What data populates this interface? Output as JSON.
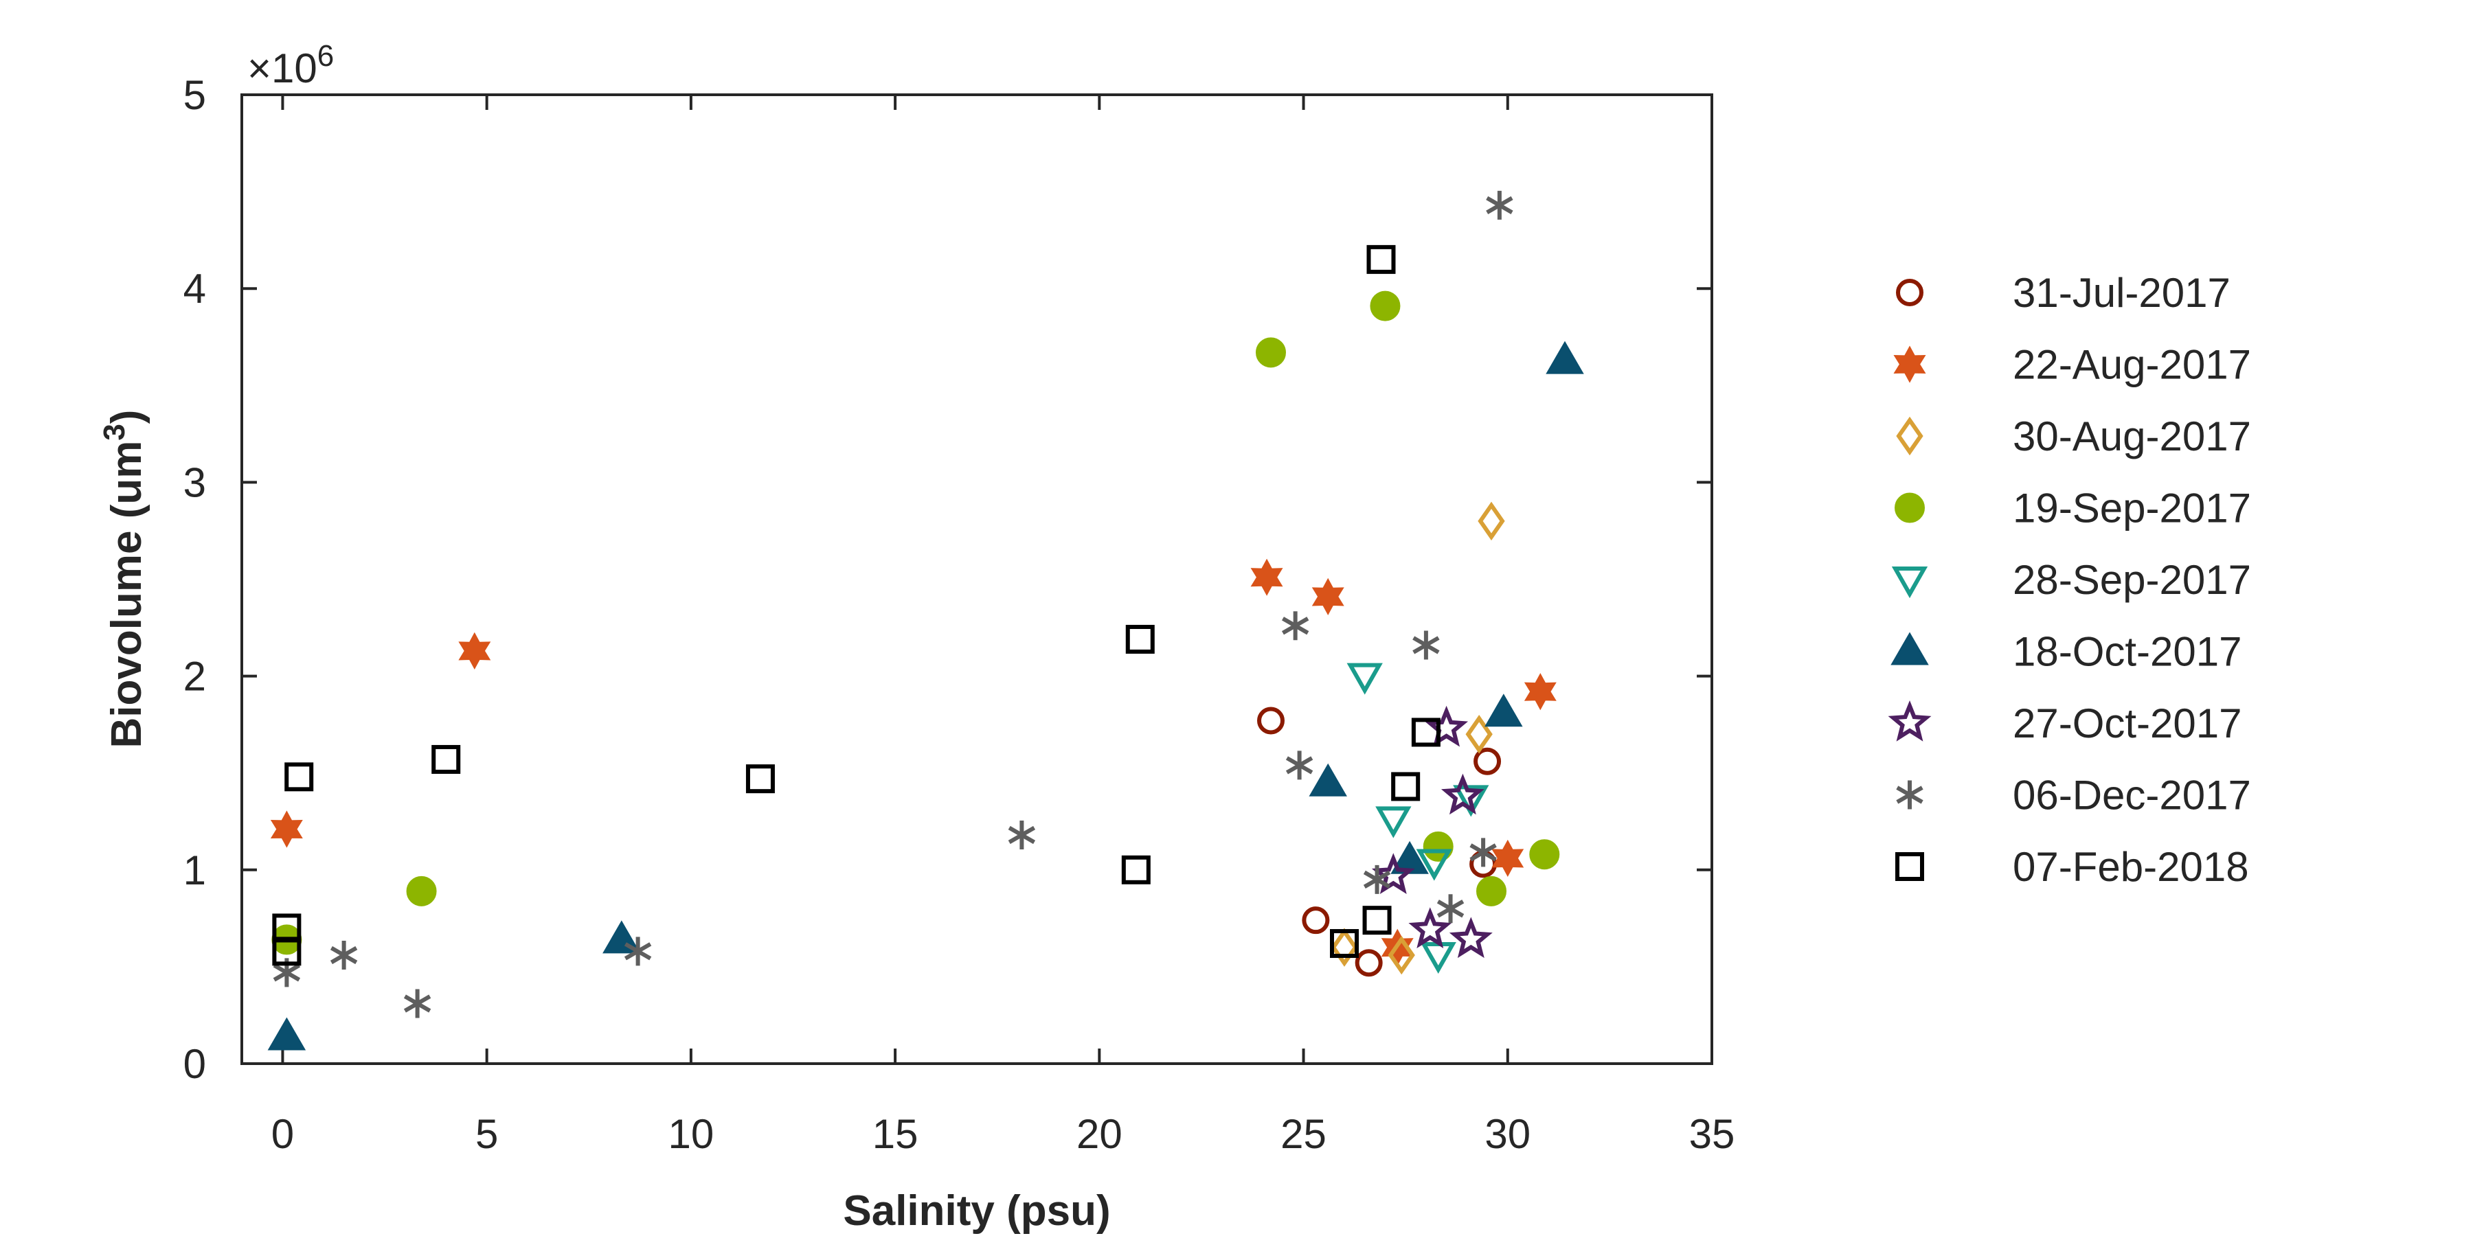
{
  "chart_data": {
    "type": "scatter",
    "xlabel": "Salinity (psu)",
    "ylabel_main": "Biovolume (um",
    "ylabel_sup": "3",
    "ylabel_close": ")",
    "xlim": [
      -1,
      35
    ],
    "ylim": [
      0,
      5000000
    ],
    "x_ticks": [
      0,
      5,
      10,
      15,
      20,
      25,
      30,
      35
    ],
    "y_ticks": [
      0,
      1,
      2,
      3,
      4,
      5
    ],
    "y_multiplier_prefix": "×10",
    "y_multiplier_exponent": "6",
    "legend_position": "right",
    "series": [
      {
        "name": "31-Jul-2017",
        "marker": "circle-open",
        "color": "#8B1A00",
        "points": [
          [
            24.2,
            1770000
          ],
          [
            25.3,
            740000
          ],
          [
            26.6,
            520000
          ],
          [
            29.4,
            1030000
          ],
          [
            29.5,
            1560000
          ]
        ]
      },
      {
        "name": "22-Aug-2017",
        "marker": "hexagram-filled",
        "color": "#D95319",
        "points": [
          [
            0.1,
            1210000
          ],
          [
            4.7,
            2130000
          ],
          [
            24.1,
            2510000
          ],
          [
            25.6,
            2410000
          ],
          [
            27.3,
            600000
          ],
          [
            30.0,
            1060000
          ],
          [
            30.8,
            1920000
          ]
        ]
      },
      {
        "name": "30-Aug-2017",
        "marker": "diamond-open",
        "color": "#D9A036",
        "points": [
          [
            26.0,
            600000
          ],
          [
            27.4,
            560000
          ],
          [
            29.3,
            1700000
          ],
          [
            29.6,
            2800000
          ]
        ]
      },
      {
        "name": "19-Sep-2017",
        "marker": "circle-filled",
        "color": "#8DB500",
        "points": [
          [
            0.1,
            640000
          ],
          [
            3.4,
            890000
          ],
          [
            24.2,
            3670000
          ],
          [
            27.0,
            3910000
          ],
          [
            28.3,
            1120000
          ],
          [
            29.6,
            890000
          ],
          [
            30.9,
            1080000
          ]
        ]
      },
      {
        "name": "28-Sep-2017",
        "marker": "triangle-down-open",
        "color": "#1A9C8C",
        "points": [
          [
            26.5,
            2000000
          ],
          [
            27.2,
            1260000
          ],
          [
            28.2,
            1040000
          ],
          [
            28.3,
            560000
          ],
          [
            29.1,
            1370000
          ]
        ]
      },
      {
        "name": "18-Oct-2017",
        "marker": "triangle-up-filled",
        "color": "#0A4F6E",
        "points": [
          [
            0.1,
            140000
          ],
          [
            8.3,
            640000
          ],
          [
            25.6,
            1450000
          ],
          [
            27.6,
            1050000
          ],
          [
            29.9,
            1810000
          ],
          [
            31.4,
            3630000
          ]
        ]
      },
      {
        "name": "27-Oct-2017",
        "marker": "pentagram-open",
        "color": "#4D1F60",
        "points": [
          [
            27.2,
            970000
          ],
          [
            28.1,
            690000
          ],
          [
            28.5,
            1730000
          ],
          [
            28.9,
            1380000
          ],
          [
            29.1,
            640000
          ]
        ]
      },
      {
        "name": "06-Dec-2017",
        "marker": "asterisk",
        "color": "#5E5E5E",
        "points": [
          [
            0.1,
            470000
          ],
          [
            1.5,
            560000
          ],
          [
            3.3,
            310000
          ],
          [
            8.7,
            580000
          ],
          [
            18.1,
            1180000
          ],
          [
            24.8,
            2260000
          ],
          [
            24.9,
            1540000
          ],
          [
            26.8,
            950000
          ],
          [
            28.0,
            2160000
          ],
          [
            28.6,
            800000
          ],
          [
            29.4,
            1090000
          ],
          [
            29.8,
            4430000
          ]
        ]
      },
      {
        "name": "07-Feb-2018",
        "marker": "square-open",
        "color": "#000000",
        "points": [
          [
            0.1,
            580000
          ],
          [
            0.1,
            700000
          ],
          [
            0.4,
            1480000
          ],
          [
            4.0,
            1570000
          ],
          [
            11.7,
            1470000
          ],
          [
            20.9,
            1000000
          ],
          [
            21.0,
            2190000
          ],
          [
            26.0,
            620000
          ],
          [
            26.8,
            740000
          ],
          [
            26.9,
            4150000
          ],
          [
            27.5,
            1430000
          ],
          [
            28.0,
            1710000
          ]
        ]
      }
    ]
  }
}
